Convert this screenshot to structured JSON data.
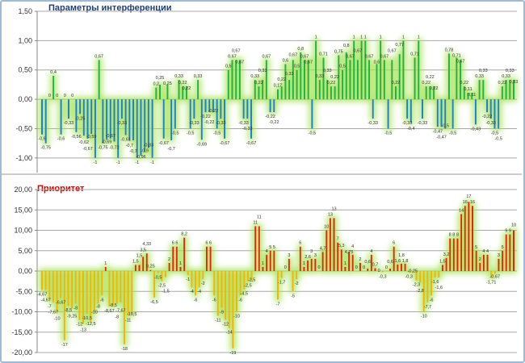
{
  "chart_data": [
    {
      "type": "bar",
      "title": "Параметры интерференции",
      "ylim": [
        -1.25,
        1.5
      ],
      "yticks": [
        1.5,
        1.0,
        0.5,
        0.0,
        -0.5,
        -1.0
      ],
      "ytick_labels": [
        "1,50",
        "1,00",
        "0,50",
        "0,00",
        "-0,50",
        "-1,00"
      ],
      "grid": true,
      "colors": {
        "positive": "#22b24a",
        "negative": "#1f7fd0",
        "glow": "#9be04a"
      },
      "values": [
        -0.6,
        -0.75,
        0,
        0.4,
        0,
        -0.6,
        0,
        -0.33,
        0,
        -0.56,
        -0.25,
        -0.62,
        -0.67,
        -0.59,
        -1,
        0.67,
        -0.75,
        -0.69,
        -0.67,
        -0.72,
        -1,
        -0.33,
        -0.61,
        -0.7,
        -0.7,
        -1,
        -0.96,
        -0.9,
        -0.83,
        -1,
        0.2,
        0.25,
        -0.67,
        0.25,
        -0.7,
        -0.5,
        0.33,
        0.22,
        0.22,
        -0.5,
        -0.33,
        0.33,
        -0.69,
        -0.22,
        -0.22,
        -0.22,
        -0.5,
        -0.33,
        -0.67,
        0.5,
        0.67,
        0.67,
        0.67,
        -0.33,
        -0.33,
        -0.67,
        0.33,
        0.22,
        0.33,
        0.67,
        -0.22,
        -0.22,
        0.17,
        0.22,
        0.6,
        0.33,
        0.67,
        0.5,
        0.8,
        0.67,
        0.67,
        -0.5,
        1,
        0.33,
        0.71,
        0.33,
        0.22,
        0.22,
        0.75,
        0.5,
        0.8,
        0.67,
        1,
        0.67,
        1,
        1,
        0.67,
        -0.33,
        0.6,
        1,
        0.67,
        -0.5,
        0.67,
        0.22,
        0.77,
        1,
        -0.33,
        -0.4,
        0.71,
        1,
        -0.33,
        0.22,
        0.22,
        0.22,
        -0.47,
        -0.47,
        -0.5,
        0.78,
        -0.5,
        0.71,
        0.67,
        0.22,
        0.11,
        0.11,
        -0.43,
        0.33,
        0.33,
        -0.22,
        -0.33,
        -0.5,
        -0.5,
        0.22,
        0.33,
        0.33,
        0.33
      ]
    },
    {
      "type": "bar",
      "title": "Приоритет",
      "ylim": [
        -20,
        20
      ],
      "yticks": [
        20,
        15,
        10,
        5,
        0,
        -5,
        -10,
        -15,
        -20
      ],
      "ytick_labels": [
        "20,00",
        "15,00",
        "10,00",
        "5,00",
        "0,00",
        "-5,00",
        "-10,00",
        "-15,00",
        "-20,00"
      ],
      "grid": true,
      "colors": {
        "positive": "#e8200c",
        "negative": "#f5b400",
        "glow": "#9be04a"
      },
      "values": [
        -4.67,
        -4.67,
        -7,
        -7.67,
        -10,
        -6.67,
        -17,
        -8.5,
        -9.25,
        -8,
        -12,
        -13,
        -10.5,
        -12.5,
        -10,
        -8,
        -6,
        1,
        -8.67,
        -8.5,
        -8,
        -7.67,
        -18,
        -11,
        -10.5,
        1.5,
        1.5,
        3.5,
        4.33,
        0.25,
        -6.5,
        -0.5,
        -2.5,
        -1.5,
        2,
        6,
        6,
        1,
        8.2,
        -1,
        -4,
        -6,
        -4,
        -2,
        6,
        6,
        -6,
        -11,
        -9,
        -12,
        -14,
        -19,
        -10,
        -6,
        -4.5,
        -2.5,
        -2.5,
        11,
        11,
        1,
        4,
        5,
        5,
        -7,
        -1.7,
        0,
        3,
        -5,
        -2,
        6,
        1,
        2.6,
        3,
        3,
        0,
        4.7,
        10,
        13,
        13,
        7,
        5.3,
        1,
        4.75,
        4,
        0,
        2,
        0,
        0.6,
        4,
        0.7,
        0,
        -0.3,
        0,
        0.6,
        6,
        1.6,
        1.8,
        1.8,
        -0.3,
        -0.25,
        -2.3,
        -2.8,
        -10,
        -7.7,
        -6,
        -1.6,
        -1.6,
        1.5,
        3.2,
        8,
        8,
        8,
        14,
        16,
        17,
        16,
        5,
        2,
        4,
        4,
        -1.71,
        -0.67,
        3,
        5,
        9,
        9,
        10
      ]
    }
  ]
}
